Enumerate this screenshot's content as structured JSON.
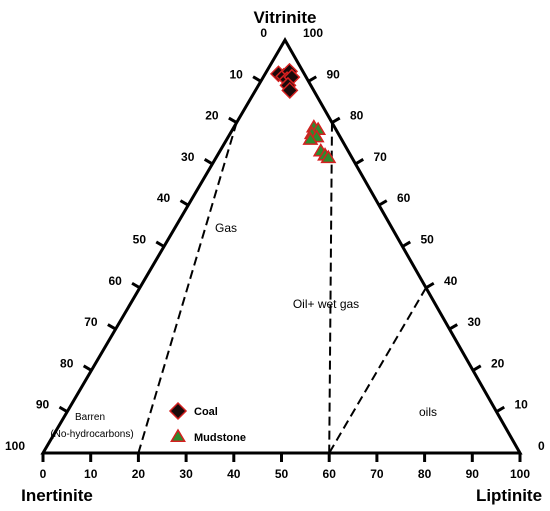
{
  "chart_data": {
    "type": "ternary-scatter",
    "vertices": {
      "top": "Vitrinite",
      "bottom_left": "Inertinite",
      "bottom_right": "Liptinite"
    },
    "tick_values": [
      0,
      10,
      20,
      30,
      40,
      50,
      60,
      70,
      80,
      90,
      100
    ],
    "regions": [
      {
        "name": "Gas"
      },
      {
        "name": "Oil+ wet gas"
      },
      {
        "name": "oils"
      },
      {
        "name": "Barren"
      },
      {
        "name": "(No-hydrocarbons)"
      }
    ],
    "boundaries": [
      {
        "from": {
          "vitrinite": 80,
          "liptinite": 0
        },
        "to": {
          "vitrinite": 0,
          "liptinite": 20
        }
      },
      {
        "from": {
          "vitrinite": 80,
          "liptinite": 20
        },
        "to": {
          "vitrinite": 0,
          "liptinite": 60
        }
      },
      {
        "from": {
          "vitrinite": 40,
          "liptinite": 60
        },
        "to": {
          "vitrinite": 0,
          "liptinite": 60
        }
      }
    ],
    "series": [
      {
        "name": "Coal",
        "marker": "diamond",
        "color": "#1a0a0a",
        "edge_color": "#d42020",
        "points": [
          {
            "vitrinite": 91.8,
            "liptinite": 2.8
          },
          {
            "vitrinite": 91.2,
            "liptinite": 4.2
          },
          {
            "vitrinite": 92.4,
            "liptinite": 4.8
          },
          {
            "vitrinite": 90.4,
            "liptinite": 5.3
          },
          {
            "vitrinite": 91.0,
            "liptinite": 6.0
          },
          {
            "vitrinite": 89.0,
            "liptinite": 6.2
          },
          {
            "vitrinite": 87.8,
            "liptinite": 7.2
          }
        ]
      },
      {
        "name": "Mudstone",
        "marker": "triangle",
        "color": "#2e8b2e",
        "edge_color": "#d42020",
        "points": [
          {
            "vitrinite": 78.8,
            "liptinite": 16.8
          },
          {
            "vitrinite": 78.2,
            "liptinite": 18.0
          },
          {
            "vitrinite": 77.2,
            "liptinite": 17.2
          },
          {
            "vitrinite": 76.4,
            "liptinite": 18.6
          },
          {
            "vitrinite": 75.8,
            "liptinite": 17.6
          },
          {
            "vitrinite": 73.0,
            "liptinite": 21.2
          },
          {
            "vitrinite": 72.0,
            "liptinite": 22.6
          },
          {
            "vitrinite": 71.4,
            "liptinite": 23.6
          }
        ]
      }
    ]
  }
}
